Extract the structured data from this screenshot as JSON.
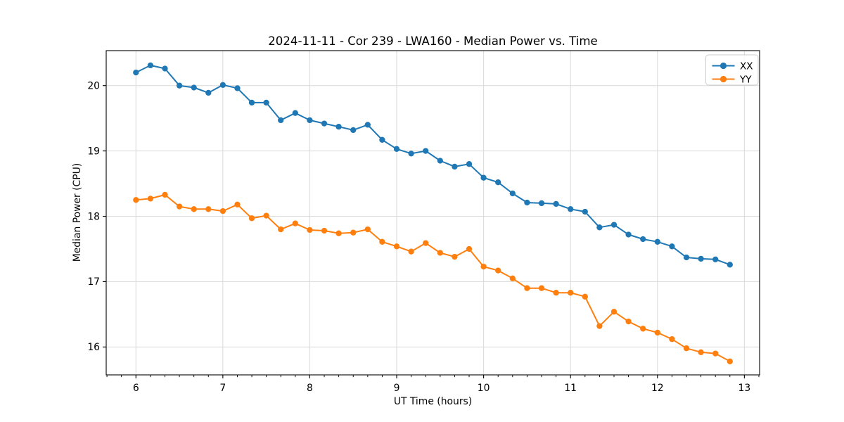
{
  "chart_data": {
    "type": "line",
    "title": "2024-11-11 - Cor 239 - LWA160 - Median Power vs. Time",
    "xlabel": "UT Time (hours)",
    "ylabel": "Median Power (CPU)",
    "xlim": [
      5.658,
      13.175
    ],
    "ylim": [
      15.573,
      20.535
    ],
    "xticks": [
      6,
      7,
      8,
      9,
      10,
      11,
      12,
      13
    ],
    "yticks": [
      16,
      17,
      18,
      19,
      20
    ],
    "x_minor_per_unit": 6,
    "grid": true,
    "grid_color": "#d9d9d9",
    "legend_position": "upper right",
    "marker": "o",
    "x": [
      6,
      6.1667,
      6.3333,
      6.5,
      6.6667,
      6.8333,
      7,
      7.1667,
      7.3333,
      7.5,
      7.6667,
      7.8333,
      8,
      8.1667,
      8.3333,
      8.5,
      8.6667,
      8.8333,
      9,
      9.1667,
      9.3333,
      9.5,
      9.6667,
      9.8333,
      10,
      10.1667,
      10.3333,
      10.5,
      10.6667,
      10.8333,
      11,
      11.1667,
      11.3333,
      11.5,
      11.6667,
      11.8333,
      12,
      12.1667,
      12.3333,
      12.5,
      12.6667,
      12.8333
    ],
    "series": [
      {
        "name": "XX",
        "color": "#1f77b4",
        "values": [
          20.2,
          20.31,
          20.26,
          20.0,
          19.97,
          19.89,
          20.01,
          19.96,
          19.74,
          19.74,
          19.47,
          19.58,
          19.47,
          19.42,
          19.37,
          19.32,
          19.4,
          19.17,
          19.03,
          18.96,
          19.0,
          18.85,
          18.76,
          18.8,
          18.59,
          18.52,
          18.35,
          18.21,
          18.2,
          18.19,
          18.11,
          18.07,
          17.83,
          17.87,
          17.72,
          17.65,
          17.61,
          17.54,
          17.37,
          17.35,
          17.34,
          17.26
        ]
      },
      {
        "name": "YY",
        "color": "#ff7f0e",
        "values": [
          18.25,
          18.27,
          18.33,
          18.15,
          18.11,
          18.11,
          18.08,
          18.18,
          17.97,
          18.01,
          17.8,
          17.89,
          17.79,
          17.78,
          17.74,
          17.75,
          17.8,
          17.61,
          17.54,
          17.46,
          17.59,
          17.44,
          17.38,
          17.5,
          17.23,
          17.17,
          17.05,
          16.9,
          16.9,
          16.83,
          16.83,
          16.77,
          16.32,
          16.54,
          16.39,
          16.28,
          16.22,
          16.12,
          15.98,
          15.92,
          15.9,
          15.78
        ]
      }
    ]
  }
}
